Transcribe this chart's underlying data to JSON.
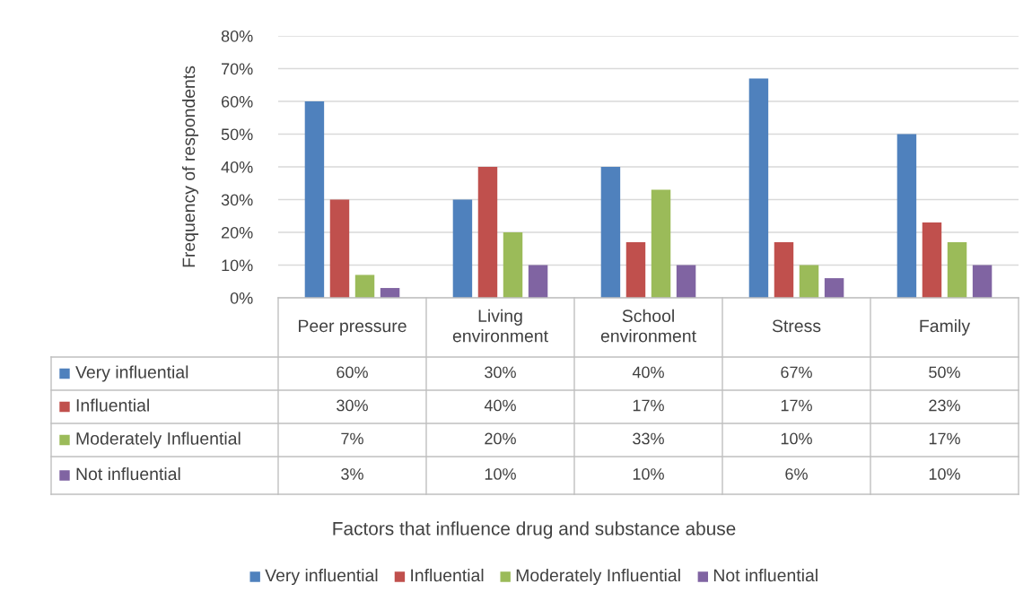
{
  "chart_data": {
    "type": "bar",
    "annotations": [
      "Factors that influence drug and substance abuse"
    ],
    "ylabel": "Frequency of respondents",
    "categories": [
      "Peer pressure",
      "Living environment",
      "School environment",
      "Stress",
      "Family"
    ],
    "series": [
      {
        "name": "Very influential",
        "color": "#4f81bd",
        "values": [
          60,
          30,
          40,
          67,
          50
        ],
        "value_labels": [
          "60%",
          "30%",
          "40%",
          "67%",
          "50%"
        ]
      },
      {
        "name": "Influential",
        "color": "#c0504d",
        "values": [
          30,
          40,
          17,
          17,
          23
        ],
        "value_labels": [
          "30%",
          "40%",
          "17%",
          "17%",
          "23%"
        ]
      },
      {
        "name": "Moderately Influential",
        "color": "#9bbb59",
        "values": [
          7,
          20,
          33,
          10,
          17
        ],
        "value_labels": [
          "7%",
          "20%",
          "33%",
          "10%",
          "17%"
        ]
      },
      {
        "name": "Not influential",
        "color": "#8064a2",
        "values": [
          3,
          10,
          10,
          6,
          10
        ],
        "value_labels": [
          "3%",
          "10%",
          "10%",
          "6%",
          "10%"
        ]
      }
    ],
    "ylim": [
      0,
      80
    ],
    "yticks": [
      {
        "value": 0,
        "label": "0%"
      },
      {
        "value": 10,
        "label": "10%"
      },
      {
        "value": 20,
        "label": "20%"
      },
      {
        "value": 30,
        "label": "30%"
      },
      {
        "value": 40,
        "label": "40%"
      },
      {
        "value": 50,
        "label": "50%"
      },
      {
        "value": 60,
        "label": "60%"
      },
      {
        "value": 70,
        "label": "70%"
      },
      {
        "value": 80,
        "label": "80%"
      }
    ],
    "grid": "y",
    "legend": "bottom"
  }
}
